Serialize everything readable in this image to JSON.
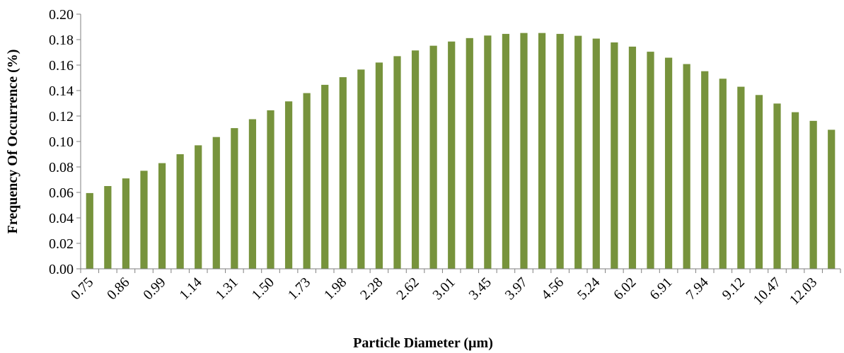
{
  "chart_data": {
    "type": "bar",
    "title": "",
    "xlabel": "Particle Diameter (µm)",
    "ylabel": "Frequency Of Occurrence (%)",
    "ylim": [
      0,
      0.2
    ],
    "yticks": [
      "0.00",
      "0.02",
      "0.04",
      "0.06",
      "0.08",
      "0.10",
      "0.12",
      "0.14",
      "0.16",
      "0.18",
      "0.20"
    ],
    "tick_labels": [
      "0.75",
      "0.86",
      "0.99",
      "1.14",
      "1.31",
      "1.50",
      "1.73",
      "1.98",
      "2.28",
      "2.62",
      "3.01",
      "3.45",
      "3.97",
      "4.56",
      "5.24",
      "6.02",
      "6.91",
      "7.94",
      "9.12",
      "10.47",
      "12.03"
    ],
    "values": [
      0.0595,
      0.065,
      0.071,
      0.077,
      0.083,
      0.09,
      0.097,
      0.1035,
      0.1105,
      0.1175,
      0.1245,
      0.1315,
      0.138,
      0.1445,
      0.1505,
      0.1565,
      0.162,
      0.167,
      0.1715,
      0.1752,
      0.1785,
      0.1812,
      0.1832,
      0.1845,
      0.1852,
      0.1852,
      0.1845,
      0.183,
      0.1808,
      0.1778,
      0.1745,
      0.1705,
      0.1658,
      0.1608,
      0.1552,
      0.1493,
      0.143,
      0.1365,
      0.1298,
      0.123,
      0.1162,
      0.1092
    ],
    "bar_color": "#77933c",
    "grid": false,
    "legend": "none"
  }
}
